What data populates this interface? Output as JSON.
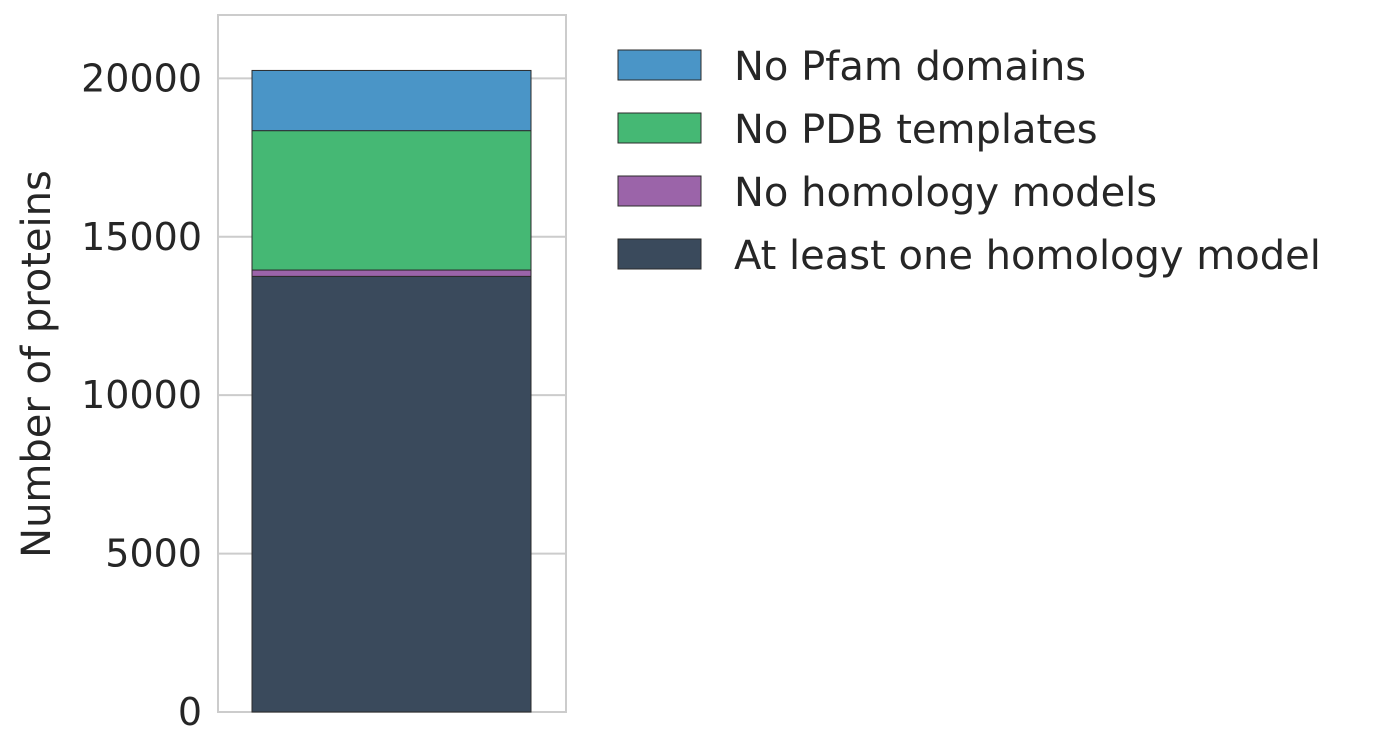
{
  "chart_data": {
    "type": "bar",
    "stacked": true,
    "categories": [
      ""
    ],
    "ylabel": "Number of proteins",
    "xlabel": "",
    "ylim": [
      0,
      22000
    ],
    "yticks": [
      0,
      5000,
      10000,
      15000,
      20000
    ],
    "grid": true,
    "legend_position": "right, outside plot area",
    "series": [
      {
        "name": "At least one homology model",
        "values": [
          13750
        ],
        "color": "#3a4a5c"
      },
      {
        "name": "No homology models",
        "values": [
          200
        ],
        "color": "#9b64a9"
      },
      {
        "name": "No PDB templates",
        "values": [
          4400
        ],
        "color": "#45b874"
      },
      {
        "name": "No Pfam domains",
        "values": [
          1900
        ],
        "color": "#4a95c7"
      }
    ],
    "legend_order": [
      "No Pfam domains",
      "No PDB templates",
      "No homology models",
      "At least one homology model"
    ]
  }
}
